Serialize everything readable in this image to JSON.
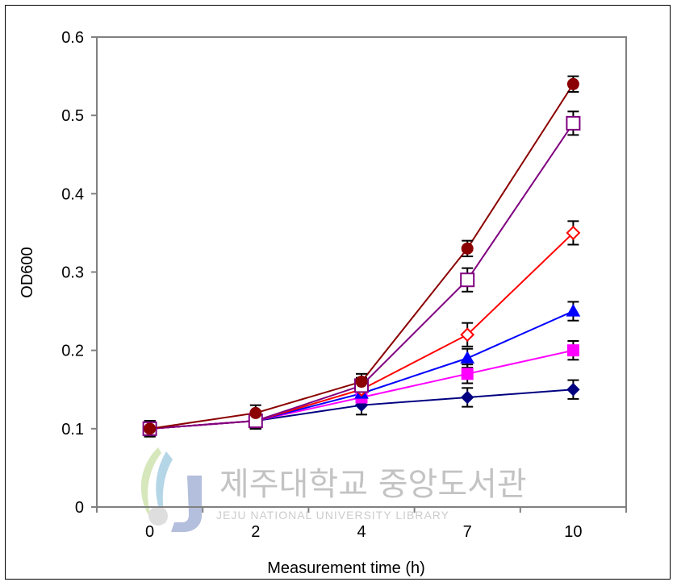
{
  "chart_data": {
    "type": "line",
    "xlabel": "Measurement time (h)",
    "ylabel": "OD600",
    "categories": [
      "0",
      "2",
      "4",
      "7",
      "10"
    ],
    "ylim": [
      0,
      0.6
    ],
    "yticks": [
      "0",
      "0.1",
      "0.2",
      "0.3",
      "0.4",
      "0.5",
      "0.6"
    ],
    "grid": false,
    "series": [
      {
        "marker": "circle",
        "filled": true,
        "color": "#8b0000",
        "values": [
          0.1,
          0.12,
          0.16,
          0.33,
          0.54
        ],
        "errors": [
          0.01,
          0.01,
          0.01,
          0.01,
          0.01
        ]
      },
      {
        "marker": "square",
        "filled": false,
        "color": "#800080",
        "values": [
          0.1,
          0.11,
          0.155,
          0.29,
          0.49
        ],
        "errors": [
          0.01,
          0.01,
          0.01,
          0.015,
          0.015
        ]
      },
      {
        "marker": "diamond",
        "filled": false,
        "color": "#ff0000",
        "values": [
          0.1,
          0.11,
          0.15,
          0.22,
          0.35
        ],
        "errors": [
          0.01,
          0.01,
          0.01,
          0.015,
          0.015
        ]
      },
      {
        "marker": "triangle",
        "filled": true,
        "color": "#0000ff",
        "values": [
          0.1,
          0.11,
          0.145,
          0.19,
          0.25
        ],
        "errors": [
          0.01,
          0.01,
          0.01,
          0.012,
          0.012
        ]
      },
      {
        "marker": "square",
        "filled": true,
        "color": "#ff00ff",
        "values": [
          0.1,
          0.11,
          0.14,
          0.17,
          0.2
        ],
        "errors": [
          0.01,
          0.01,
          0.01,
          0.012,
          0.012
        ]
      },
      {
        "marker": "diamond",
        "filled": true,
        "color": "#000080",
        "values": [
          0.1,
          0.11,
          0.13,
          0.14,
          0.15
        ],
        "errors": [
          0.01,
          0.01,
          0.012,
          0.012,
          0.012
        ]
      }
    ]
  },
  "watermark": {
    "title": "제주대학교 중앙도서관",
    "subtitle": "JEJU NATIONAL UNIVERSITY LIBRARY"
  }
}
